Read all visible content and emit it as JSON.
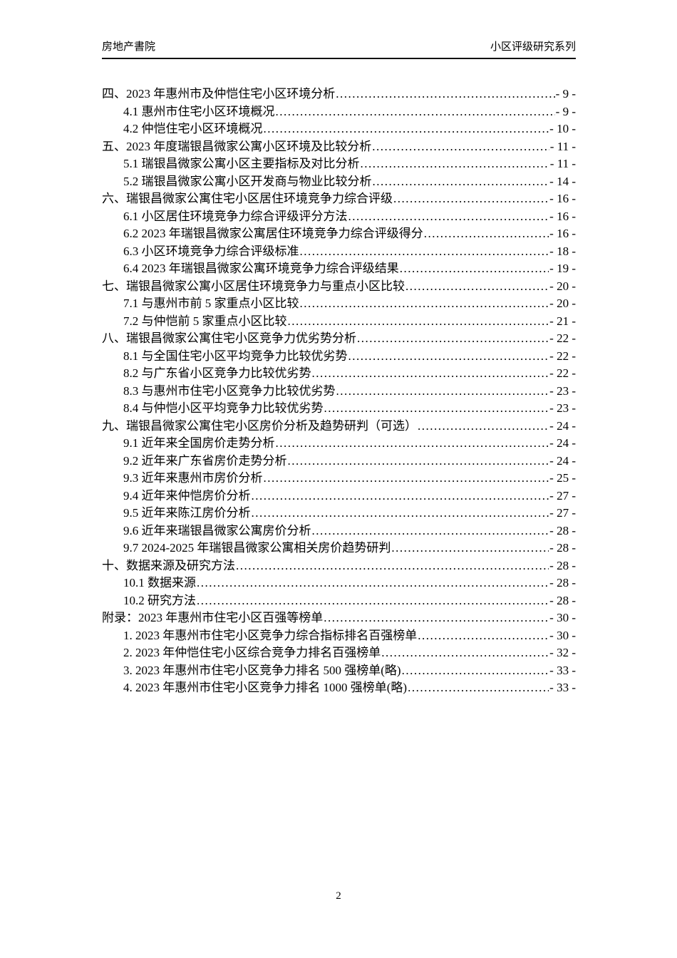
{
  "header": {
    "left": "房地产書院",
    "right": "小区评级研究系列"
  },
  "toc": {
    "entries": [
      {
        "level": 0,
        "text": "四、2023 年惠州市及仲恺住宅小区环境分析",
        "page": "- 9 -"
      },
      {
        "level": 1,
        "text": "4.1 惠州市住宅小区环境概况",
        "page": "- 9 -"
      },
      {
        "level": 1,
        "text": "4.2 仲恺住宅小区环境概况",
        "page": "- 10 -"
      },
      {
        "level": 0,
        "text": "五、2023 年度瑞银昌微家公寓小区环境及比较分析",
        "page": "- 11 -"
      },
      {
        "level": 1,
        "text": "5.1 瑞银昌微家公寓小区主要指标及对比分析",
        "page": "- 11 -"
      },
      {
        "level": 1,
        "text": "5.2 瑞银昌微家公寓小区开发商与物业比较分析",
        "page": "- 14 -"
      },
      {
        "level": 0,
        "text": "六、瑞银昌微家公寓住宅小区居住环境竞争力综合评级",
        "page": "- 16 -"
      },
      {
        "level": 1,
        "text": "6.1 小区居住环境竞争力综合评级评分方法",
        "page": "- 16 -"
      },
      {
        "level": 1,
        "text": "6.2 2023 年瑞银昌微家公寓居住环境竞争力综合评级得分",
        "page": "- 16 -"
      },
      {
        "level": 1,
        "text": "6.3 小区环境竞争力综合评级标准",
        "page": "- 18 -"
      },
      {
        "level": 1,
        "text": "6.4 2023 年瑞银昌微家公寓环境竞争力综合评级结果",
        "page": "- 19 -"
      },
      {
        "level": 0,
        "text": "七、瑞银昌微家公寓小区居住环境竞争力与重点小区比较",
        "page": "- 20 -"
      },
      {
        "level": 1,
        "text": "7.1 与惠州市前 5 家重点小区比较",
        "page": "- 20 -"
      },
      {
        "level": 1,
        "text": "7.2 与仲恺前 5 家重点小区比较",
        "page": "- 21 -"
      },
      {
        "level": 0,
        "text": "八、瑞银昌微家公寓住宅小区竞争力优劣势分析",
        "page": "- 22 -"
      },
      {
        "level": 1,
        "text": "8.1 与全国住宅小区平均竞争力比较优劣势",
        "page": "- 22 -"
      },
      {
        "level": 1,
        "text": "8.2 与广东省小区竞争力比较优劣势",
        "page": "- 22 -"
      },
      {
        "level": 1,
        "text": "8.3 与惠州市住宅小区竞争力比较优劣势",
        "page": "- 23 -"
      },
      {
        "level": 1,
        "text": "8.4 与仲恺小区平均竞争力比较优劣势",
        "page": "- 23 -"
      },
      {
        "level": 0,
        "text": "九、瑞银昌微家公寓住宅小区房价分析及趋势研判（可选）",
        "page": "- 24 -"
      },
      {
        "level": 1,
        "text": "9.1 近年来全国房价走势分析",
        "page": "- 24 -"
      },
      {
        "level": 1,
        "text": "9.2 近年来广东省房价走势分析",
        "page": "- 24 -"
      },
      {
        "level": 1,
        "text": "9.3 近年来惠州市房价分析",
        "page": "- 25 -"
      },
      {
        "level": 1,
        "text": "9.4 近年来仲恺房价分析",
        "page": "- 27 -"
      },
      {
        "level": 1,
        "text": "9.5 近年来陈江房价分析",
        "page": "- 27 -"
      },
      {
        "level": 1,
        "text": "9.6 近年来瑞银昌微家公寓房价分析",
        "page": "- 28 -"
      },
      {
        "level": 1,
        "text": "9.7 2024-2025 年瑞银昌微家公寓相关房价趋势研判",
        "page": "- 28 -"
      },
      {
        "level": 0,
        "text": "十、数据来源及研究方法",
        "page": "- 28 -"
      },
      {
        "level": 1,
        "text": "10.1 数据来源",
        "page": "- 28 -"
      },
      {
        "level": 1,
        "text": "10.2 研究方法",
        "page": "- 28 -"
      },
      {
        "level": 0,
        "text": "附录：2023 年惠州市住宅小区百强等榜单",
        "page": "- 30 -"
      },
      {
        "level": 1,
        "text": "1. 2023 年惠州市住宅小区竞争力综合指标排名百强榜单",
        "page": "- 30 -"
      },
      {
        "level": 1,
        "text": "2. 2023 年仲恺住宅小区综合竞争力排名百强榜单",
        "page": "- 32 -"
      },
      {
        "level": 1,
        "text": "3. 2023 年惠州市住宅小区竞争力排名 500 强榜单(略)",
        "page": "- 33 -"
      },
      {
        "level": 1,
        "text": "4. 2023 年惠州市住宅小区竞争力排名 1000 强榜单(略)",
        "page": "- 33 -"
      }
    ]
  },
  "footer": {
    "page_number": "2"
  }
}
